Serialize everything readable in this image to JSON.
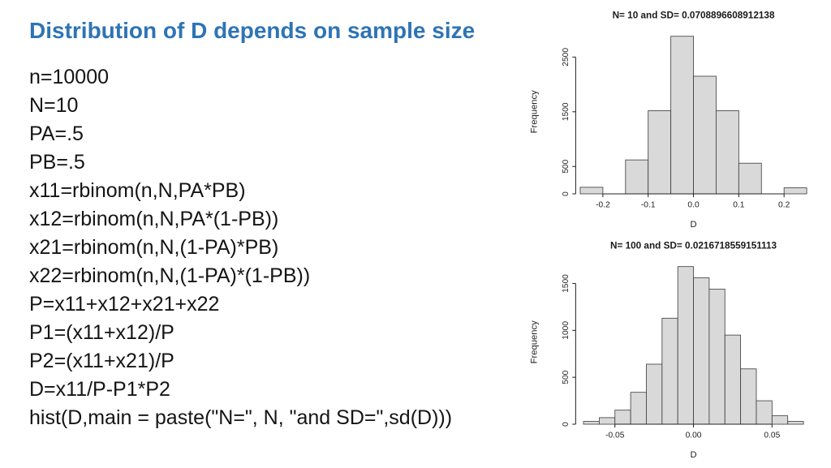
{
  "slide": {
    "title": "Distribution of D depends on sample size",
    "title_color": "#2E74B5",
    "code_lines": [
      "n=10000",
      "N=10",
      "PA=.5",
      "PB=.5",
      "x11=rbinom(n,N,PA*PB)",
      "x12=rbinom(n,N,PA*(1-PB))",
      "x21=rbinom(n,N,(1-PA)*PB)",
      "x22=rbinom(n,N,(1-PA)*(1-PB))",
      "P=x11+x12+x21+x22",
      "P1=(x11+x12)/P",
      "P2=(x11+x21)/P",
      "D=x11/P-P1*P2",
      "hist(D,main = paste(\"N=\", N, \"and SD=\",sd(D)))"
    ]
  },
  "chart_data": [
    {
      "type": "bar",
      "title": "N= 10 and SD= 0.0708896608912138",
      "xlabel": "D",
      "ylabel": "Frequency",
      "breaks": [
        -0.25,
        -0.2,
        -0.15,
        -0.1,
        -0.05,
        0,
        0.05,
        0.1,
        0.15,
        0.2,
        0.25
      ],
      "values": [
        120,
        0,
        620,
        1520,
        2880,
        2150,
        1520,
        560,
        0,
        110
      ],
      "xlim": [
        -0.26,
        0.26
      ],
      "ylim": [
        0,
        3000
      ],
      "xtick_values": [
        -0.2,
        -0.1,
        0,
        0.1,
        0.2
      ],
      "xtick_labels": [
        "-0.2",
        "-0.1",
        "0.0",
        "0.1",
        "0.2"
      ],
      "ytick_values": [
        0,
        500,
        1500,
        2500
      ],
      "ytick_labels": [
        "0",
        "500",
        "1500",
        "2500"
      ],
      "bar_fill": "#d9d9d9",
      "bar_stroke": "#3d3d3d",
      "grid": false,
      "legend": false
    },
    {
      "type": "bar",
      "title": "N= 100 and SD= 0.0216718559151113",
      "xlabel": "D",
      "ylabel": "Frequency",
      "breaks": [
        -0.07,
        -0.06,
        -0.05,
        -0.04,
        -0.03,
        -0.02,
        -0.01,
        0,
        0.01,
        0.02,
        0.03,
        0.04,
        0.05,
        0.06,
        0.07
      ],
      "values": [
        30,
        70,
        150,
        340,
        640,
        1130,
        1680,
        1560,
        1440,
        950,
        590,
        250,
        90,
        30
      ],
      "xlim": [
        -0.075,
        0.075
      ],
      "ylim": [
        0,
        1750
      ],
      "xtick_values": [
        -0.05,
        0,
        0.05
      ],
      "xtick_labels": [
        "-0.05",
        "0.00",
        "0.05"
      ],
      "ytick_values": [
        0,
        500,
        1000,
        1500
      ],
      "ytick_labels": [
        "0",
        "500",
        "1000",
        "1500"
      ],
      "bar_fill": "#d9d9d9",
      "bar_stroke": "#3d3d3d",
      "grid": false,
      "legend": false
    }
  ]
}
